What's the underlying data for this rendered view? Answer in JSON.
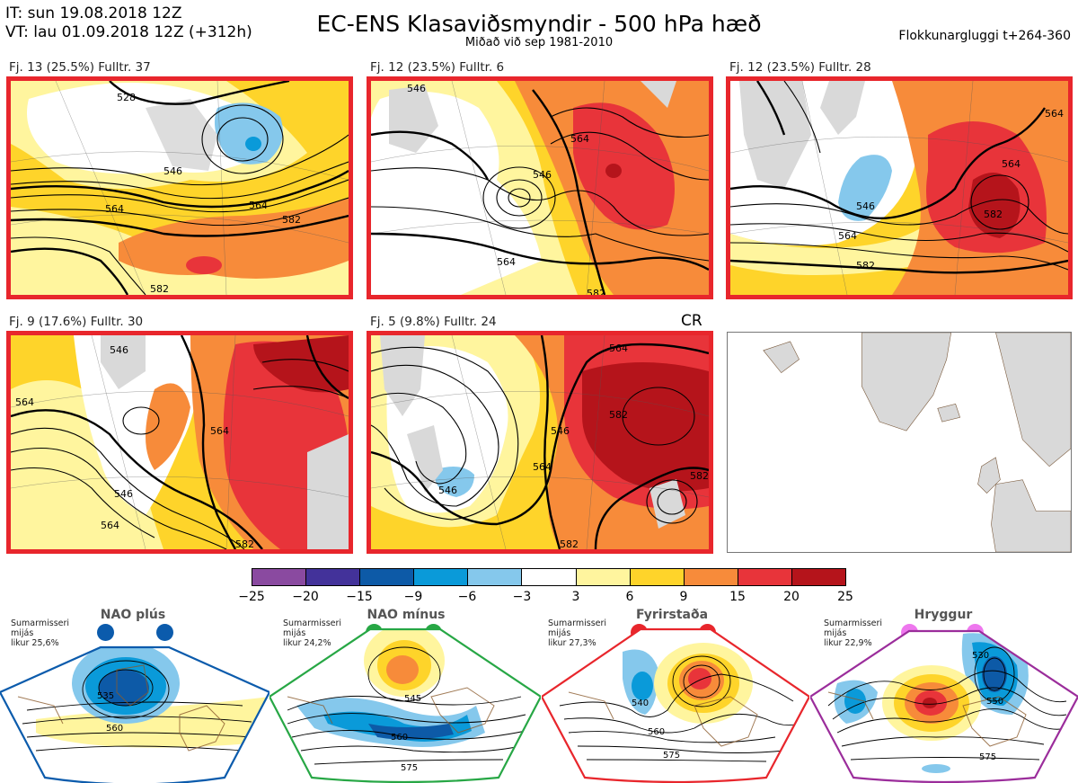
{
  "header": {
    "it_line": "IT: sun 19.08.2018 12Z",
    "vt_line": "VT: lau 01.09.2018 12Z  (+312h)",
    "title": "EC-ENS Klasaviðsmyndir - 500 hPa hæð",
    "subtitle": "Miðað við sep 1981-2010",
    "window": "Flokkunargluggi t+264-360"
  },
  "clusters": [
    {
      "title": "Fj. 13 (25.5%)  Fulltr. 37",
      "contours": [
        "546",
        "564",
        "582",
        "528",
        "564",
        "582"
      ]
    },
    {
      "title": "Fj. 12 (23.5%)  Fulltr. 6",
      "contours": [
        "546",
        "564",
        "564",
        "546",
        "582"
      ]
    },
    {
      "title": "Fj. 12 (23.5%)  Fulltr. 28",
      "contours": [
        "546",
        "564",
        "582",
        "564",
        "582",
        "564"
      ]
    },
    {
      "title": "Fj. 9 (17.6%)  Fulltr. 30",
      "contours": [
        "546",
        "564",
        "546",
        "564",
        "564",
        "582"
      ]
    },
    {
      "title": "Fj. 5 (9.8%)  Fulltr. 24",
      "contours": [
        "564",
        "546",
        "564",
        "546",
        "582",
        "582",
        "582"
      ]
    }
  ],
  "cr_label": "CR",
  "colorbar": {
    "ticks": [
      "−25",
      "−20",
      "−15",
      "−9",
      "−6",
      "−3",
      "3",
      "6",
      "9",
      "15",
      "20",
      "25"
    ],
    "colors": [
      "#8a4aa0",
      "#43329a",
      "#0d5aa7",
      "#0a9ad9",
      "#85c8ec",
      "#ffffff",
      "#fff59e",
      "#fed42a",
      "#f78b3a",
      "#e8343a",
      "#b5141b"
    ]
  },
  "regimes": [
    {
      "name": "NAO plús",
      "season": "Sumarmisseri",
      "label": "mijás",
      "prob": "likur 25,6%",
      "color": "#0b5bac",
      "contours": [
        "535",
        "560"
      ]
    },
    {
      "name": "NAO mínus",
      "season": "Sumarmisseri",
      "label": "mijás",
      "prob": "likur 24,2%",
      "color": "#27a745",
      "contours": [
        "545",
        "560",
        "575"
      ]
    },
    {
      "name": "Fyrirstaða",
      "season": "Sumarmisseri",
      "label": "mijás",
      "prob": "likur 27,3%",
      "color": "#e8262c",
      "contours": [
        "540",
        "560",
        "575"
      ]
    },
    {
      "name": "Hryggur",
      "season": "Sumarmisseri",
      "label": "mijás",
      "prob": "likur 22,9%",
      "color": "#ee77ee",
      "contours": [
        "530",
        "550",
        "575"
      ]
    }
  ]
}
